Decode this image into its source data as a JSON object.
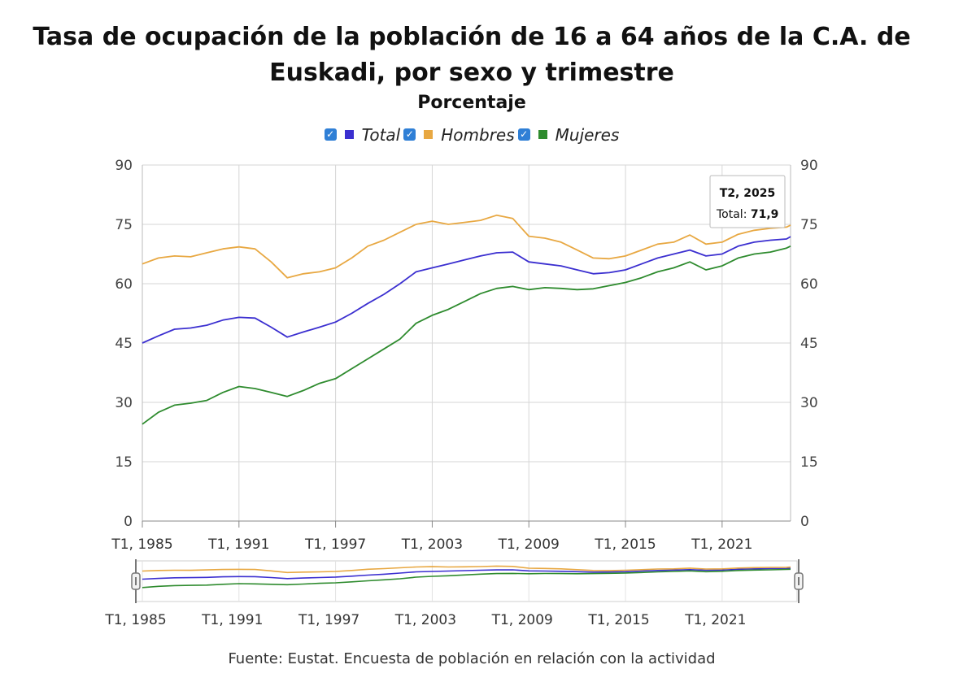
{
  "title": "Tasa de ocupación de la población de 16 a 64 años de la C.A. de Euskadi, por sexo y trimestre",
  "subtitle": "Porcentaje",
  "source": "Fuente: Eustat. Encuesta de población en relación con la actividad",
  "legend": {
    "checkmark": "✓"
  },
  "tooltip": {
    "period": "T2, 2025",
    "series": "Total",
    "value": "71,9"
  },
  "colors": {
    "Total": "#3b2fd0",
    "Hombres": "#e8a842",
    "Mujeres": "#2e8b2e",
    "checkbox": "#2f7fd6"
  },
  "chart_data": {
    "type": "line",
    "x_start": "T1, 1985",
    "x_end": "T2, 2025",
    "frequency": "quarterly",
    "xtick_labels": [
      "T1, 1985",
      "T1, 1991",
      "T1, 1997",
      "T1, 2003",
      "T1, 2009",
      "T1, 2015",
      "T1, 2021"
    ],
    "ylim": [
      0,
      90
    ],
    "yticks": [
      0,
      15,
      30,
      45,
      60,
      75,
      90
    ],
    "grid": true,
    "legend_position": "top",
    "series": [
      {
        "name": "Total",
        "color": "#3b2fd0",
        "points": [
          [
            "T1, 1985",
            45.0
          ],
          [
            "T1, 1986",
            46.8
          ],
          [
            "T1, 1987",
            48.5
          ],
          [
            "T1, 1988",
            48.8
          ],
          [
            "T1, 1989",
            49.5
          ],
          [
            "T1, 1990",
            50.8
          ],
          [
            "T1, 1991",
            51.5
          ],
          [
            "T1, 1992",
            51.3
          ],
          [
            "T1, 1993",
            49.0
          ],
          [
            "T1, 1994",
            46.5
          ],
          [
            "T1, 1995",
            47.8
          ],
          [
            "T1, 1996",
            49.0
          ],
          [
            "T1, 1997",
            50.3
          ],
          [
            "T1, 1998",
            52.5
          ],
          [
            "T1, 1999",
            55.0
          ],
          [
            "T1, 2000",
            57.3
          ],
          [
            "T1, 2001",
            60.0
          ],
          [
            "T1, 2002",
            63.0
          ],
          [
            "T1, 2003",
            64.0
          ],
          [
            "T1, 2004",
            65.0
          ],
          [
            "T1, 2005",
            66.0
          ],
          [
            "T1, 2006",
            67.0
          ],
          [
            "T1, 2007",
            67.8
          ],
          [
            "T1, 2008",
            68.0
          ],
          [
            "T1, 2009",
            65.5
          ],
          [
            "T1, 2010",
            65.0
          ],
          [
            "T1, 2011",
            64.5
          ],
          [
            "T1, 2012",
            63.5
          ],
          [
            "T1, 2013",
            62.5
          ],
          [
            "T1, 2014",
            62.8
          ],
          [
            "T1, 2015",
            63.5
          ],
          [
            "T1, 2016",
            65.0
          ],
          [
            "T1, 2017",
            66.5
          ],
          [
            "T1, 2018",
            67.5
          ],
          [
            "T1, 2019",
            68.5
          ],
          [
            "T1, 2020",
            67.0
          ],
          [
            "T1, 2021",
            67.5
          ],
          [
            "T1, 2022",
            69.5
          ],
          [
            "T1, 2023",
            70.5
          ],
          [
            "T1, 2024",
            71.0
          ],
          [
            "T1, 2025",
            71.3
          ],
          [
            "T2, 2025",
            71.9
          ]
        ]
      },
      {
        "name": "Hombres",
        "color": "#e8a842",
        "points": [
          [
            "T1, 1985",
            65.0
          ],
          [
            "T1, 1986",
            66.5
          ],
          [
            "T1, 1987",
            67.0
          ],
          [
            "T1, 1988",
            66.8
          ],
          [
            "T1, 1989",
            67.8
          ],
          [
            "T1, 1990",
            68.8
          ],
          [
            "T1, 1991",
            69.3
          ],
          [
            "T1, 1992",
            68.8
          ],
          [
            "T1, 1993",
            65.5
          ],
          [
            "T1, 1994",
            61.5
          ],
          [
            "T1, 1995",
            62.5
          ],
          [
            "T1, 1996",
            63.0
          ],
          [
            "T1, 1997",
            64.0
          ],
          [
            "T1, 1998",
            66.5
          ],
          [
            "T1, 1999",
            69.5
          ],
          [
            "T1, 2000",
            71.0
          ],
          [
            "T1, 2001",
            73.0
          ],
          [
            "T1, 2002",
            75.0
          ],
          [
            "T1, 2003",
            75.8
          ],
          [
            "T1, 2004",
            75.0
          ],
          [
            "T1, 2005",
            75.5
          ],
          [
            "T1, 2006",
            76.0
          ],
          [
            "T1, 2007",
            77.3
          ],
          [
            "T1, 2008",
            76.5
          ],
          [
            "T1, 2009",
            72.0
          ],
          [
            "T1, 2010",
            71.5
          ],
          [
            "T1, 2011",
            70.5
          ],
          [
            "T1, 2012",
            68.5
          ],
          [
            "T1, 2013",
            66.5
          ],
          [
            "T1, 2014",
            66.3
          ],
          [
            "T1, 2015",
            67.0
          ],
          [
            "T1, 2016",
            68.5
          ],
          [
            "T1, 2017",
            70.0
          ],
          [
            "T1, 2018",
            70.5
          ],
          [
            "T1, 2019",
            72.3
          ],
          [
            "T1, 2020",
            70.0
          ],
          [
            "T1, 2021",
            70.5
          ],
          [
            "T1, 2022",
            72.5
          ],
          [
            "T1, 2023",
            73.5
          ],
          [
            "T1, 2024",
            74.0
          ],
          [
            "T1, 2025",
            74.3
          ],
          [
            "T2, 2025",
            74.8
          ]
        ]
      },
      {
        "name": "Mujeres",
        "color": "#2e8b2e",
        "points": [
          [
            "T1, 1985",
            24.5
          ],
          [
            "T1, 1986",
            27.5
          ],
          [
            "T1, 1987",
            29.3
          ],
          [
            "T1, 1988",
            29.8
          ],
          [
            "T1, 1989",
            30.5
          ],
          [
            "T1, 1990",
            32.5
          ],
          [
            "T1, 1991",
            34.0
          ],
          [
            "T1, 1992",
            33.5
          ],
          [
            "T1, 1993",
            32.5
          ],
          [
            "T1, 1994",
            31.5
          ],
          [
            "T1, 1995",
            33.0
          ],
          [
            "T1, 1996",
            34.8
          ],
          [
            "T1, 1997",
            36.0
          ],
          [
            "T1, 1998",
            38.5
          ],
          [
            "T1, 1999",
            41.0
          ],
          [
            "T1, 2000",
            43.5
          ],
          [
            "T1, 2001",
            46.0
          ],
          [
            "T1, 2002",
            50.0
          ],
          [
            "T1, 2003",
            52.0
          ],
          [
            "T1, 2004",
            53.5
          ],
          [
            "T1, 2005",
            55.5
          ],
          [
            "T1, 2006",
            57.5
          ],
          [
            "T1, 2007",
            58.8
          ],
          [
            "T1, 2008",
            59.3
          ],
          [
            "T1, 2009",
            58.5
          ],
          [
            "T1, 2010",
            59.0
          ],
          [
            "T1, 2011",
            58.8
          ],
          [
            "T1, 2012",
            58.5
          ],
          [
            "T1, 2013",
            58.7
          ],
          [
            "T1, 2014",
            59.5
          ],
          [
            "T1, 2015",
            60.3
          ],
          [
            "T1, 2016",
            61.5
          ],
          [
            "T1, 2017",
            63.0
          ],
          [
            "T1, 2018",
            64.0
          ],
          [
            "T1, 2019",
            65.5
          ],
          [
            "T1, 2020",
            63.5
          ],
          [
            "T1, 2021",
            64.5
          ],
          [
            "T1, 2022",
            66.5
          ],
          [
            "T1, 2023",
            67.5
          ],
          [
            "T1, 2024",
            68.0
          ],
          [
            "T1, 2025",
            69.0
          ],
          [
            "T2, 2025",
            69.5
          ]
        ]
      }
    ]
  }
}
